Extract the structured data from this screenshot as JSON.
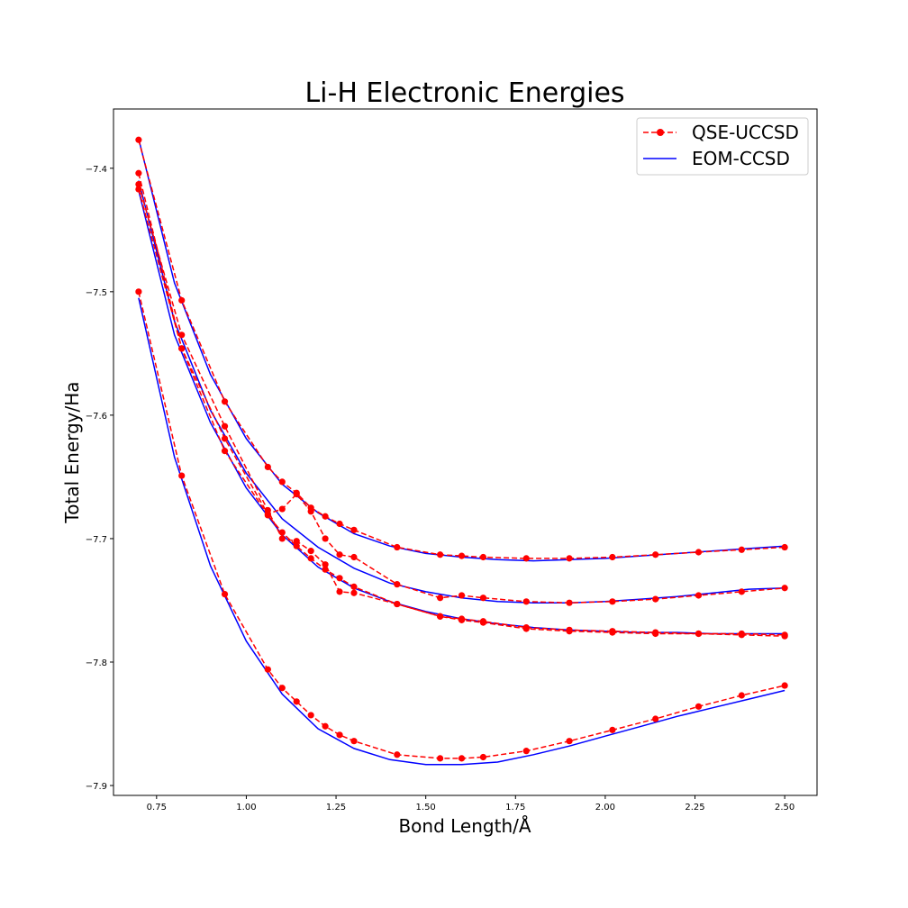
{
  "chart_data": {
    "type": "line",
    "title": "Li-H Electronic Energies",
    "xlabel": "Bond Length/Å",
    "ylabel": "Total Energy/Ha",
    "xlim": [
      0.63,
      2.59
    ],
    "ylim": [
      -7.908,
      -7.352
    ],
    "xticks": [
      0.75,
      1.0,
      1.25,
      1.5,
      1.75,
      2.0,
      2.25,
      2.5
    ],
    "xtick_labels": [
      "0.75",
      "1.00",
      "1.25",
      "1.50",
      "1.75",
      "2.00",
      "2.25",
      "2.50"
    ],
    "yticks": [
      -7.4,
      -7.5,
      -7.6,
      -7.7,
      -7.8,
      -7.9
    ],
    "ytick_labels": [
      "−7.4",
      "−7.5",
      "−7.6",
      "−7.7",
      "−7.8",
      "−7.9"
    ],
    "grid": false,
    "legend_position": "top-right",
    "legend": [
      {
        "label": "QSE-UCCSD",
        "color": "#ff0000",
        "style": "dashed-marker"
      },
      {
        "label": "EOM-CCSD",
        "color": "#0000ff",
        "style": "solid"
      }
    ],
    "series": [
      {
        "group": "QSE-UCCSD",
        "color": "#ff0000",
        "style": "dashed-marker",
        "x": [
          0.7,
          0.82,
          0.94,
          1.06,
          1.1,
          1.14,
          1.18,
          1.22,
          1.26,
          1.3,
          1.42,
          1.54,
          1.6,
          1.66,
          1.78,
          1.9,
          2.02,
          2.14,
          2.26,
          2.38,
          2.5
        ],
        "y": [
          -7.5,
          -7.649,
          -7.745,
          -7.806,
          -7.821,
          -7.832,
          -7.843,
          -7.852,
          -7.859,
          -7.864,
          -7.875,
          -7.878,
          -7.878,
          -7.877,
          -7.872,
          -7.864,
          -7.855,
          -7.846,
          -7.836,
          -7.827,
          -7.819
        ]
      },
      {
        "group": "QSE-UCCSD",
        "color": "#ff0000",
        "style": "dashed-marker",
        "x": [
          0.7,
          0.82,
          0.94,
          1.06,
          1.1,
          1.14,
          1.18,
          1.22,
          1.26,
          1.3,
          1.42,
          1.54,
          1.6,
          1.66,
          1.78,
          1.9,
          2.02,
          2.14,
          2.26,
          2.38,
          2.5
        ],
        "y": [
          -7.417,
          -7.546,
          -7.629,
          -7.681,
          -7.695,
          -7.706,
          -7.716,
          -7.725,
          -7.732,
          -7.739,
          -7.753,
          -7.763,
          -7.766,
          -7.768,
          -7.773,
          -7.775,
          -7.776,
          -7.777,
          -7.777,
          -7.778,
          -7.779
        ]
      },
      {
        "group": "QSE-UCCSD",
        "color": "#ff0000",
        "style": "dashed-marker",
        "x": [
          0.7,
          0.82,
          0.94,
          1.06,
          1.1,
          1.14,
          1.18,
          1.22,
          1.26,
          1.3,
          1.42,
          1.54,
          1.6,
          1.66,
          1.78,
          1.9,
          2.02,
          2.14,
          2.26,
          2.38,
          2.5
        ],
        "y": [
          -7.413,
          -7.535,
          -7.609,
          -7.677,
          -7.7,
          -7.702,
          -7.71,
          -7.721,
          -7.743,
          -7.744,
          -7.753,
          -7.763,
          -7.765,
          -7.767,
          -7.772,
          -7.774,
          -7.775,
          -7.776,
          -7.777,
          -7.777,
          -7.778
        ]
      },
      {
        "group": "QSE-UCCSD",
        "color": "#ff0000",
        "style": "dashed-marker",
        "x": [
          0.7,
          0.82,
          0.94,
          1.06,
          1.1,
          1.14,
          1.18,
          1.22,
          1.26,
          1.3,
          1.42,
          1.54,
          1.6,
          1.66,
          1.78,
          1.9,
          2.02,
          2.14,
          2.26,
          2.38,
          2.5
        ],
        "y": [
          -7.404,
          -7.546,
          -7.619,
          -7.68,
          -7.676,
          -7.664,
          -7.678,
          -7.7,
          -7.713,
          -7.715,
          -7.737,
          -7.748,
          -7.746,
          -7.748,
          -7.751,
          -7.752,
          -7.751,
          -7.749,
          -7.746,
          -7.743,
          -7.74
        ]
      },
      {
        "group": "QSE-UCCSD",
        "color": "#ff0000",
        "style": "dashed-marker",
        "x": [
          0.7,
          0.82,
          0.94,
          1.06,
          1.1,
          1.14,
          1.18,
          1.22,
          1.26,
          1.3,
          1.42,
          1.54,
          1.6,
          1.66,
          1.78,
          1.9,
          2.02,
          2.14,
          2.26,
          2.38,
          2.5
        ],
        "y": [
          -7.377,
          -7.507,
          -7.589,
          -7.642,
          -7.654,
          -7.663,
          -7.675,
          -7.682,
          -7.688,
          -7.693,
          -7.707,
          -7.713,
          -7.714,
          -7.715,
          -7.716,
          -7.716,
          -7.715,
          -7.713,
          -7.711,
          -7.709,
          -7.707
        ]
      },
      {
        "group": "EOM-CCSD",
        "color": "#0000ff",
        "style": "solid",
        "x": [
          0.7,
          0.8,
          0.9,
          1.0,
          1.1,
          1.2,
          1.3,
          1.4,
          1.5,
          1.6,
          1.7,
          1.8,
          1.9,
          2.0,
          2.1,
          2.2,
          2.3,
          2.4,
          2.5
        ],
        "y": [
          -7.505,
          -7.634,
          -7.722,
          -7.783,
          -7.826,
          -7.854,
          -7.87,
          -7.879,
          -7.883,
          -7.883,
          -7.881,
          -7.875,
          -7.868,
          -7.86,
          -7.852,
          -7.844,
          -7.837,
          -7.83,
          -7.823
        ]
      },
      {
        "group": "EOM-CCSD",
        "color": "#0000ff",
        "style": "solid",
        "x": [
          0.7,
          0.8,
          0.9,
          1.0,
          1.1,
          1.2,
          1.3,
          1.4,
          1.5,
          1.6,
          1.7,
          1.8,
          1.9,
          2.0,
          2.1,
          2.2,
          2.3,
          2.4,
          2.5
        ],
        "y": [
          -7.418,
          -7.535,
          -7.606,
          -7.659,
          -7.697,
          -7.723,
          -7.74,
          -7.751,
          -7.759,
          -7.765,
          -7.769,
          -7.772,
          -7.774,
          -7.775,
          -7.776,
          -7.776,
          -7.777,
          -7.777,
          -7.777
        ]
      },
      {
        "group": "EOM-CCSD",
        "color": "#0000ff",
        "style": "solid",
        "x": [
          0.7,
          0.8,
          0.9,
          1.0,
          1.1,
          1.2,
          1.3,
          1.4,
          1.5,
          1.6,
          1.7,
          1.8,
          1.9,
          2.0,
          2.1,
          2.2,
          2.3,
          2.4,
          2.5
        ],
        "y": [
          -7.41,
          -7.524,
          -7.596,
          -7.647,
          -7.684,
          -7.707,
          -7.724,
          -7.736,
          -7.743,
          -7.748,
          -7.751,
          -7.752,
          -7.752,
          -7.751,
          -7.749,
          -7.747,
          -7.744,
          -7.741,
          -7.74
        ]
      },
      {
        "group": "EOM-CCSD",
        "color": "#0000ff",
        "style": "solid",
        "x": [
          0.7,
          0.8,
          0.9,
          1.0,
          1.1,
          1.2,
          1.3,
          1.4,
          1.5,
          1.6,
          1.7,
          1.8,
          1.9,
          2.0,
          2.1,
          2.2,
          2.3,
          2.4,
          2.5
        ],
        "y": [
          -7.376,
          -7.493,
          -7.567,
          -7.619,
          -7.656,
          -7.679,
          -7.696,
          -7.706,
          -7.712,
          -7.715,
          -7.717,
          -7.718,
          -7.717,
          -7.716,
          -7.714,
          -7.712,
          -7.71,
          -7.708,
          -7.706
        ]
      }
    ]
  }
}
